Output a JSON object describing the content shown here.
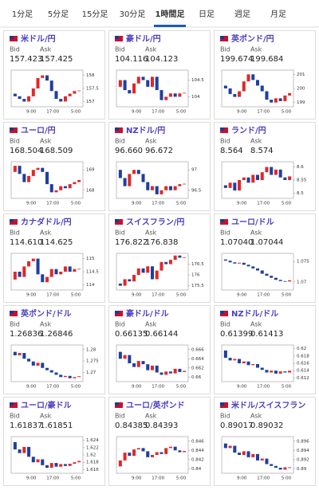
{
  "tabs": [
    "1分足",
    "5分足",
    "15分足",
    "30分足",
    "1時間足",
    "日足",
    "週足",
    "月足"
  ],
  "active_tab": 4,
  "bid_label": "Bid",
  "ask_label": "Ask",
  "x_labels": [
    "9:00",
    "17:00",
    "5:00"
  ],
  "cards": [
    {
      "name": "米ドル/円",
      "bid": "157.423",
      "ask": "157.425",
      "chart_data": {
        "type": "candlestick",
        "ylim": [
          156.8,
          158.2
        ],
        "yticks": [
          158,
          157.5,
          157
        ],
        "values": [
          157.3,
          157.2,
          157.1,
          157.0,
          157.2,
          157.5,
          157.9,
          158.0,
          157.8,
          157.4,
          157.1,
          157.0,
          157.2,
          157.3,
          157.4,
          157.42
        ]
      }
    },
    {
      "name": "豪ドル/円",
      "bid": "104.116",
      "ask": "104.123",
      "chart_data": {
        "type": "candlestick",
        "ylim": [
          103.7,
          104.8
        ],
        "yticks": [
          104.5,
          104
        ],
        "values": [
          104.3,
          104.5,
          104.2,
          104.1,
          104.4,
          104.6,
          104.5,
          104.3,
          104.6,
          104.2,
          103.9,
          104.0,
          104.1,
          104.0,
          104.1,
          104.12
        ]
      }
    },
    {
      "name": "英ポンド/円",
      "bid": "199.674",
      "ask": "199.684",
      "chart_data": {
        "type": "candlestick",
        "ylim": [
          198.7,
          201.3
        ],
        "yticks": [
          201,
          200,
          199
        ],
        "values": [
          200.2,
          200.0,
          199.6,
          199.4,
          199.8,
          200.5,
          201.0,
          200.6,
          200.2,
          199.8,
          199.2,
          199.0,
          199.3,
          199.1,
          199.5,
          199.67
        ]
      }
    },
    {
      "name": "ユーロ/円",
      "bid": "168.504",
      "ask": "168.509",
      "chart_data": {
        "type": "candlestick",
        "ylim": [
          167.6,
          169.4
        ],
        "yticks": [
          169,
          168
        ],
        "values": [
          168.9,
          169.2,
          168.8,
          168.4,
          168.7,
          169.0,
          169.1,
          168.9,
          168.3,
          167.9,
          168.0,
          168.2,
          168.1,
          168.3,
          168.4,
          168.5
        ]
      }
    },
    {
      "name": "NZドル/円",
      "bid": "96.660",
      "ask": "96.672",
      "chart_data": {
        "type": "candlestick",
        "ylim": [
          96.3,
          97.2
        ],
        "yticks": [
          97,
          96.5
        ],
        "values": [
          97.0,
          96.8,
          96.6,
          96.9,
          97.0,
          96.9,
          96.7,
          96.5,
          96.6,
          96.4,
          96.5,
          96.6,
          96.5,
          96.6,
          96.65,
          96.66
        ]
      }
    },
    {
      "name": "ランド/円",
      "bid": "8.564",
      "ask": "8.574",
      "chart_data": {
        "type": "candlestick",
        "ylim": [
          8.48,
          8.62
        ],
        "yticks": [
          8.6,
          8.55,
          8.5
        ],
        "values": [
          8.53,
          8.52,
          8.54,
          8.51,
          8.55,
          8.56,
          8.54,
          8.57,
          8.55,
          8.58,
          8.6,
          8.57,
          8.59,
          8.56,
          8.55,
          8.564
        ]
      }
    },
    {
      "name": "カナダドル/円",
      "bid": "114.610",
      "ask": "114.625",
      "chart_data": {
        "type": "candlestick",
        "ylim": [
          113.8,
          115.2
        ],
        "yticks": [
          115,
          114.5,
          114
        ],
        "values": [
          114.2,
          114.5,
          114.3,
          114.7,
          114.9,
          115.0,
          114.4,
          114.1,
          114.3,
          114.6,
          114.4,
          114.5,
          114.7,
          114.5,
          114.6,
          114.61
        ]
      }
    },
    {
      "name": "スイスフラン/円",
      "bid": "176.822",
      "ask": "176.838",
      "chart_data": {
        "type": "candlestick",
        "ylim": [
          175.3,
          177.0
        ],
        "yticks": [
          176.5,
          176,
          175.5
        ],
        "values": [
          175.6,
          175.5,
          175.8,
          175.7,
          176.0,
          176.3,
          176.1,
          176.4,
          175.8,
          176.2,
          176.6,
          176.5,
          176.7,
          176.9,
          176.8,
          176.82
        ]
      }
    },
    {
      "name": "ユーロ/ドル",
      "bid": "1.07040",
      "ask": "1.07044",
      "chart_data": {
        "type": "candlestick",
        "ylim": [
          1.068,
          1.077
        ],
        "yticks": [
          1.075,
          1.07
        ],
        "values": [
          1.0755,
          1.0752,
          1.0748,
          1.0745,
          1.0747,
          1.0742,
          1.0738,
          1.0733,
          1.0728,
          1.072,
          1.0715,
          1.071,
          1.0705,
          1.0702,
          1.0701,
          1.0704
        ]
      }
    },
    {
      "name": "英ポンド/ドル",
      "bid": "1.26836",
      "ask": "1.26846",
      "chart_data": {
        "type": "candlestick",
        "ylim": [
          1.266,
          1.282
        ],
        "yticks": [
          1.28,
          1.275,
          1.27
        ],
        "values": [
          1.279,
          1.2775,
          1.2785,
          1.276,
          1.2748,
          1.273,
          1.2742,
          1.272,
          1.271,
          1.27,
          1.269,
          1.268,
          1.2685,
          1.2675,
          1.268,
          1.26836
        ]
      }
    },
    {
      "name": "豪ドル/ドル",
      "bid": "0.66135",
      "ask": "0.66144",
      "chart_data": {
        "type": "candlestick",
        "ylim": [
          0.659,
          0.667
        ],
        "yticks": [
          0.666,
          0.664,
          0.662,
          0.66
        ],
        "values": [
          0.6655,
          0.664,
          0.6648,
          0.663,
          0.6622,
          0.6635,
          0.6628,
          0.6615,
          0.6625,
          0.661,
          0.6605,
          0.6612,
          0.6608,
          0.6618,
          0.6611,
          0.66135
        ]
      }
    },
    {
      "name": "NZドル/ドル",
      "bid": "0.61399",
      "ask": "0.61413",
      "chart_data": {
        "type": "candlestick",
        "ylim": [
          0.611,
          0.621
        ],
        "yticks": [
          0.62,
          0.618,
          0.616,
          0.614,
          0.612
        ],
        "values": [
          0.6195,
          0.6175,
          0.6168,
          0.6172,
          0.616,
          0.6165,
          0.6155,
          0.6158,
          0.6148,
          0.6142,
          0.6135,
          0.614,
          0.6132,
          0.6138,
          0.6135,
          0.61399
        ]
      }
    },
    {
      "name": "ユーロ/豪ドル",
      "bid": "1.61837",
      "ask": "1.61851",
      "chart_data": {
        "type": "candlestick",
        "ylim": [
          1.615,
          1.625
        ],
        "yticks": [
          1.624,
          1.622,
          1.62,
          1.618,
          1.616
        ],
        "values": [
          1.6235,
          1.6215,
          1.6205,
          1.6222,
          1.6195,
          1.618,
          1.6188,
          1.6172,
          1.6165,
          1.6178,
          1.6168,
          1.6175,
          1.617,
          1.6176,
          1.618,
          1.61837
        ]
      }
    },
    {
      "name": "ユーロ/英ポンド",
      "bid": "0.84385",
      "ask": "0.84393",
      "chart_data": {
        "type": "candlestick",
        "ylim": [
          0.839,
          0.847
        ],
        "yticks": [
          0.846,
          0.844,
          0.842,
          0.84
        ],
        "values": [
          0.8405,
          0.8418,
          0.8435,
          0.8428,
          0.8442,
          0.8445,
          0.8438,
          0.8425,
          0.843,
          0.8436,
          0.8432,
          0.8445,
          0.8448,
          0.844,
          0.8436,
          0.84385
        ]
      }
    },
    {
      "name": "米ドル/スイスフラン",
      "bid": "0.89017",
      "ask": "0.89032",
      "chart_data": {
        "type": "candlestick",
        "ylim": [
          0.889,
          0.897
        ],
        "yticks": [
          0.896,
          0.894,
          0.892,
          0.89
        ],
        "values": [
          0.8955,
          0.8945,
          0.895,
          0.8935,
          0.893,
          0.8938,
          0.8925,
          0.8932,
          0.8918,
          0.8922,
          0.891,
          0.8906,
          0.8902,
          0.8898,
          0.8903,
          0.89017
        ]
      }
    }
  ]
}
